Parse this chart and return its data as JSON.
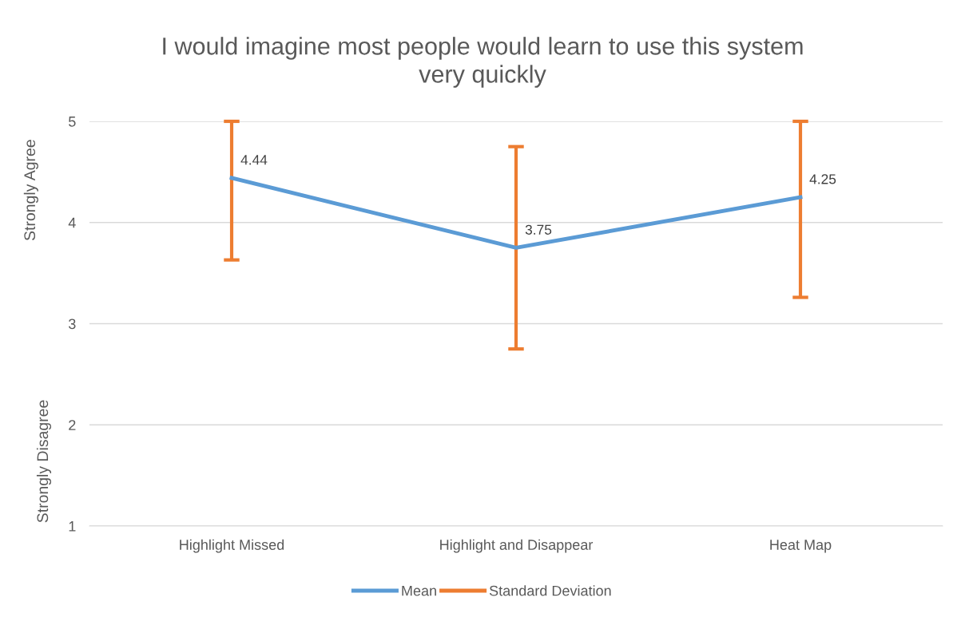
{
  "chart_data": {
    "type": "line",
    "title": "I would imagine most people would learn to use this system\nvery quickly",
    "ylabel": "Strongly Agree",
    "annotations": [
      "Strongly Disagree"
    ],
    "categories": [
      "Highlight Missed",
      "Highlight and Disappear",
      "Heat Map"
    ],
    "series": [
      {
        "name": "Mean",
        "color": "#5b9bd5",
        "values": [
          4.44,
          3.75,
          4.25
        ],
        "errors": [
          [
            3.63,
            5
          ],
          [
            2.75,
            4.75
          ],
          [
            3.26,
            5
          ]
        ]
      },
      {
        "name": "Standard Deviation",
        "color": "#ed7d31",
        "values": [
          null,
          null,
          null
        ]
      }
    ],
    "ylim": [
      1,
      5
    ],
    "yticks": [
      1,
      2,
      3,
      4,
      5
    ],
    "grid": "y",
    "legend": "bottom",
    "data_labels": true
  }
}
